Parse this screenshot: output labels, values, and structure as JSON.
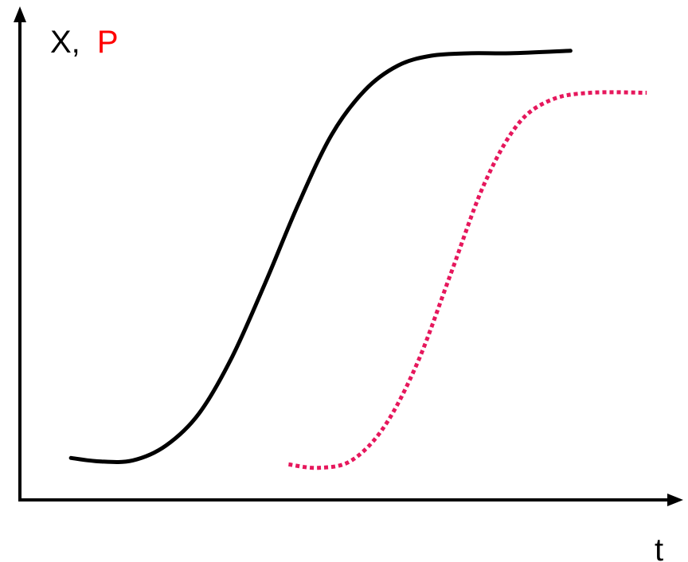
{
  "chart_data": {
    "type": "line",
    "title": "",
    "xlabel": "t",
    "ylabel_parts": [
      {
        "text": "X,",
        "color": "#000000"
      },
      {
        "text": "P",
        "color": "#ff0000"
      }
    ],
    "xlim": [
      0,
      10
    ],
    "ylim": [
      0,
      10
    ],
    "grid": false,
    "legend": "none",
    "series": [
      {
        "style": "solid",
        "color": "#000000",
        "points": [
          [
            0.77,
            0.85
          ],
          [
            1.2,
            0.78
          ],
          [
            1.7,
            0.8
          ],
          [
            2.2,
            1.1
          ],
          [
            2.7,
            1.75
          ],
          [
            3.2,
            2.9
          ],
          [
            3.7,
            4.4
          ],
          [
            4.2,
            6.0
          ],
          [
            4.7,
            7.4
          ],
          [
            5.2,
            8.3
          ],
          [
            5.7,
            8.8
          ],
          [
            6.2,
            9.0
          ],
          [
            6.8,
            9.05
          ],
          [
            7.4,
            9.05
          ],
          [
            8.3,
            9.1
          ]
        ]
      },
      {
        "style": "dotted",
        "color": "#e6175c",
        "points": [
          [
            4.05,
            0.72
          ],
          [
            4.5,
            0.65
          ],
          [
            5.0,
            0.8
          ],
          [
            5.5,
            1.5
          ],
          [
            6.0,
            2.8
          ],
          [
            6.5,
            4.6
          ],
          [
            7.0,
            6.4
          ],
          [
            7.5,
            7.6
          ],
          [
            8.0,
            8.1
          ],
          [
            8.6,
            8.25
          ],
          [
            9.45,
            8.25
          ]
        ]
      }
    ]
  }
}
